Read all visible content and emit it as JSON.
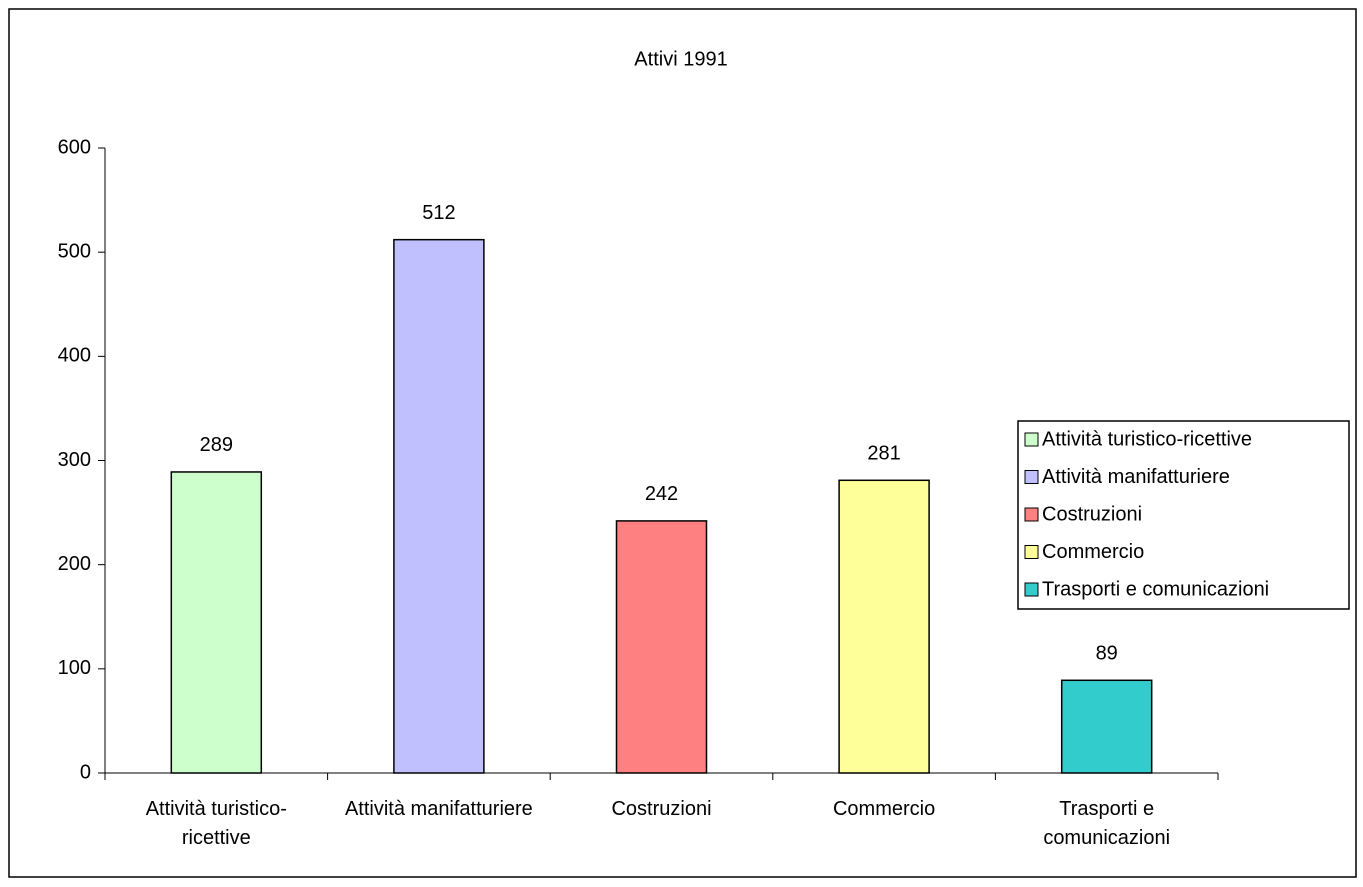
{
  "chart_data": {
    "type": "bar",
    "title": "Attivi 1991",
    "categories": [
      "Attività turistico-ricettive",
      "Attività manifatturiere",
      "Costruzioni",
      "Commercio",
      "Trasporti e comunicazioni"
    ],
    "values": [
      289,
      512,
      242,
      281,
      89
    ],
    "colors": [
      "#ccffcc",
      "#c0c0ff",
      "#ff8080",
      "#ffff99",
      "#33cccc"
    ],
    "ylim": [
      0,
      600
    ],
    "yticks": [
      0,
      100,
      200,
      300,
      400,
      500,
      600
    ],
    "grid": false,
    "legend": "right"
  }
}
